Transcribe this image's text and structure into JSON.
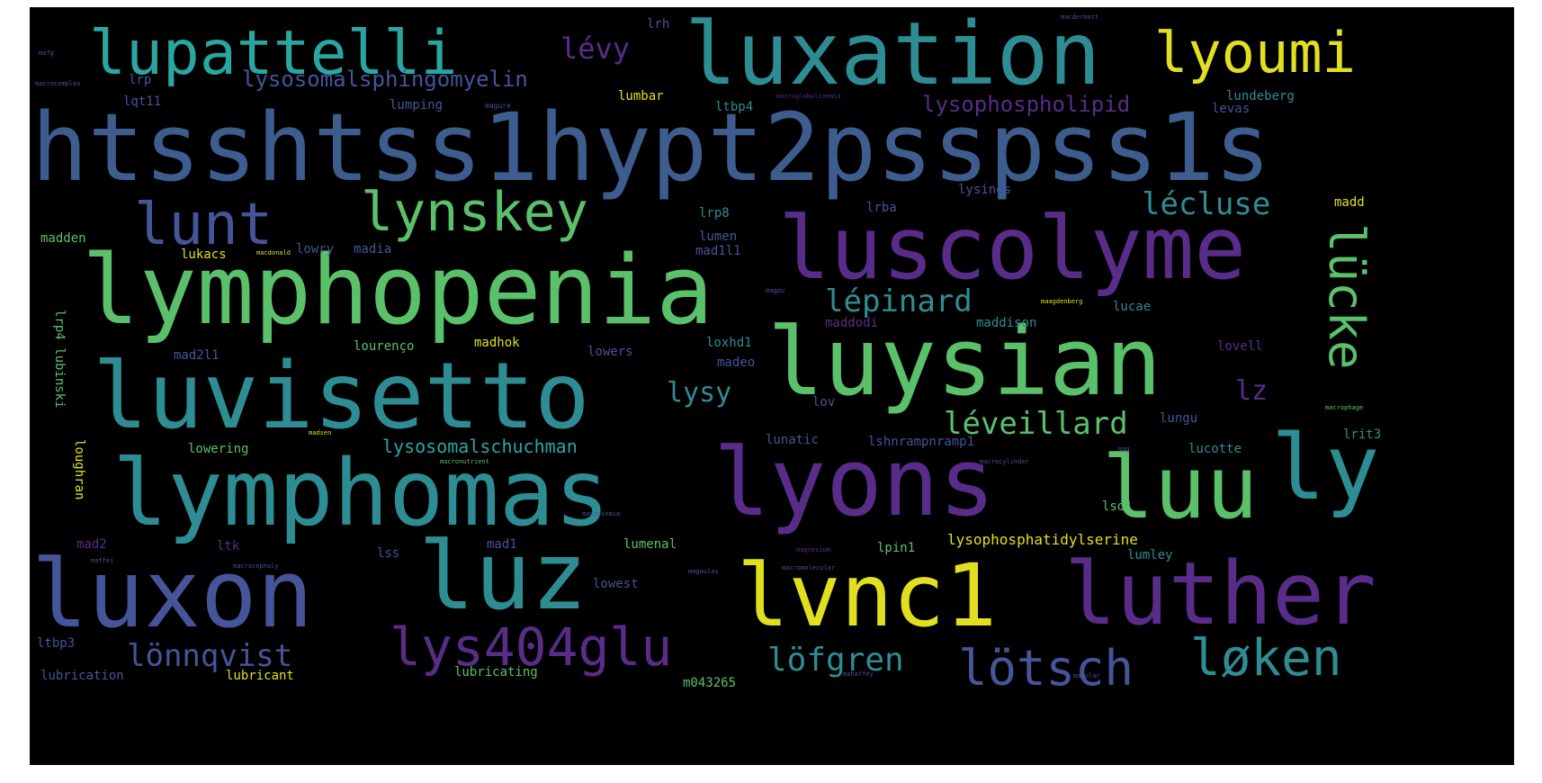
{
  "palette": {
    "purple": "#5a2c8a",
    "indigo": "#46549a",
    "slate": "#3e5d8f",
    "teal": "#2e8d93",
    "cyan": "#2aa6a0",
    "green": "#5ac16a",
    "yellow": "#e0e020",
    "background": "#000000"
  },
  "words": [
    {
      "text": "htsshtss1hypt2psspss1s",
      "color": "slate"
    },
    {
      "text": "lymphopenia",
      "color": "green"
    },
    {
      "text": "luxation",
      "color": "teal"
    },
    {
      "text": "luscolyme",
      "color": "purple"
    },
    {
      "text": "luysian",
      "color": "green"
    },
    {
      "text": "luvisetto",
      "color": "teal"
    },
    {
      "text": "lymphomas",
      "color": "teal"
    },
    {
      "text": "lyons",
      "color": "purple"
    },
    {
      "text": "luxon",
      "color": "indigo"
    },
    {
      "text": "luz",
      "color": "teal"
    },
    {
      "text": "lvnc1",
      "color": "yellow"
    },
    {
      "text": "luther",
      "color": "purple"
    },
    {
      "text": "luu",
      "color": "green"
    },
    {
      "text": "ly",
      "color": "teal"
    },
    {
      "text": "lupattelli",
      "color": "teal"
    },
    {
      "text": "lyoumi",
      "color": "yellow"
    },
    {
      "text": "lunt",
      "color": "indigo"
    },
    {
      "text": "lynskey",
      "color": "green"
    },
    {
      "text": "lücke",
      "color": "green"
    },
    {
      "text": "lys404glu",
      "color": "purple"
    },
    {
      "text": "lötsch",
      "color": "indigo"
    },
    {
      "text": "løken",
      "color": "teal"
    },
    {
      "text": "lönnqvist",
      "color": "indigo"
    },
    {
      "text": "löfgren",
      "color": "teal"
    },
    {
      "text": "lécluse",
      "color": "teal"
    },
    {
      "text": "lépinard",
      "color": "teal"
    },
    {
      "text": "léveillard",
      "color": "green"
    },
    {
      "text": "lévy",
      "color": "purple"
    },
    {
      "text": "lysosomalsphingomyelin",
      "color": "indigo"
    },
    {
      "text": "lysophospholipid",
      "color": "purple"
    },
    {
      "text": "lysosomalschuchman",
      "color": "teal"
    },
    {
      "text": "lysy",
      "color": "teal"
    },
    {
      "text": "lz",
      "color": "purple"
    },
    {
      "text": "lysophosphatidylserine",
      "color": "yellow"
    },
    {
      "text": "madd",
      "color": "yellow"
    },
    {
      "text": "madden",
      "color": "green"
    },
    {
      "text": "lumbar",
      "color": "yellow"
    },
    {
      "text": "ltbp4",
      "color": "teal"
    },
    {
      "text": "lundeberg",
      "color": "teal"
    },
    {
      "text": "levas",
      "color": "indigo"
    },
    {
      "text": "lumping",
      "color": "indigo"
    },
    {
      "text": "magure",
      "color": "indigo"
    },
    {
      "text": "lqt11",
      "color": "indigo"
    },
    {
      "text": "lrp",
      "color": "indigo"
    },
    {
      "text": "lrh",
      "color": "indigo"
    },
    {
      "text": "lysines",
      "color": "indigo"
    },
    {
      "text": "lrp8",
      "color": "teal"
    },
    {
      "text": "lrba",
      "color": "indigo"
    },
    {
      "text": "lumen",
      "color": "indigo"
    },
    {
      "text": "lowry",
      "color": "indigo"
    },
    {
      "text": "madia",
      "color": "indigo"
    },
    {
      "text": "lukacs",
      "color": "yellow"
    },
    {
      "text": "mad1l1",
      "color": "indigo"
    },
    {
      "text": "maddodi",
      "color": "purple"
    },
    {
      "text": "maddison",
      "color": "teal"
    },
    {
      "text": "lucae",
      "color": "teal"
    },
    {
      "text": "lourenço",
      "color": "green"
    },
    {
      "text": "madhok",
      "color": "yellow"
    },
    {
      "text": "loxhd1",
      "color": "teal"
    },
    {
      "text": "lovell",
      "color": "purple"
    },
    {
      "text": "mad2l1",
      "color": "indigo"
    },
    {
      "text": "lowers",
      "color": "indigo"
    },
    {
      "text": "madeo",
      "color": "indigo"
    },
    {
      "text": "lov",
      "color": "indigo"
    },
    {
      "text": "lungu",
      "color": "indigo"
    },
    {
      "text": "lowering",
      "color": "green"
    },
    {
      "text": "lunatic",
      "color": "indigo"
    },
    {
      "text": "lshnrampnramp1",
      "color": "indigo"
    },
    {
      "text": "lucotte",
      "color": "teal"
    },
    {
      "text": "lrit3",
      "color": "teal"
    },
    {
      "text": "lrp4 lubinski",
      "color": "green"
    },
    {
      "text": "loughran",
      "color": "yellow"
    },
    {
      "text": "lsd1",
      "color": "green"
    },
    {
      "text": "lss",
      "color": "indigo"
    },
    {
      "text": "mad1",
      "color": "indigo"
    },
    {
      "text": "mad2",
      "color": "purple"
    },
    {
      "text": "ltk",
      "color": "purple"
    },
    {
      "text": "lumenal",
      "color": "green"
    },
    {
      "text": "lpin1",
      "color": "green"
    },
    {
      "text": "lumley",
      "color": "teal"
    },
    {
      "text": "lowest",
      "color": "indigo"
    },
    {
      "text": "ltbp3",
      "color": "indigo"
    },
    {
      "text": "lubrication",
      "color": "indigo"
    },
    {
      "text": "lubricant",
      "color": "yellow"
    },
    {
      "text": "lubricating",
      "color": "green"
    },
    {
      "text": "m043265",
      "color": "green"
    },
    {
      "text": "macrocomplex",
      "color": "indigo"
    },
    {
      "text": "macroglobulinemia",
      "color": "purple"
    },
    {
      "text": "macdermott",
      "color": "indigo"
    },
    {
      "text": "mafg",
      "color": "indigo"
    },
    {
      "text": "macdonald",
      "color": "yellow"
    },
    {
      "text": "magpu",
      "color": "indigo"
    },
    {
      "text": "maagdenberg",
      "color": "yellow"
    },
    {
      "text": "macrosomia",
      "color": "indigo"
    },
    {
      "text": "macrocephaly",
      "color": "indigo"
    },
    {
      "text": "macromolecular",
      "color": "indigo"
    },
    {
      "text": "macrocylinder",
      "color": "indigo"
    },
    {
      "text": "macronutrient",
      "color": "green"
    },
    {
      "text": "magnesium",
      "color": "purple"
    },
    {
      "text": "madsen",
      "color": "yellow"
    },
    {
      "text": "maffei",
      "color": "indigo"
    },
    {
      "text": "mahaffey",
      "color": "indigo"
    },
    {
      "text": "macrophage",
      "color": "green"
    },
    {
      "text": "magoulas",
      "color": "indigo"
    },
    {
      "text": "macular",
      "color": "indigo"
    },
    {
      "text": "mag",
      "color": "indigo"
    }
  ]
}
